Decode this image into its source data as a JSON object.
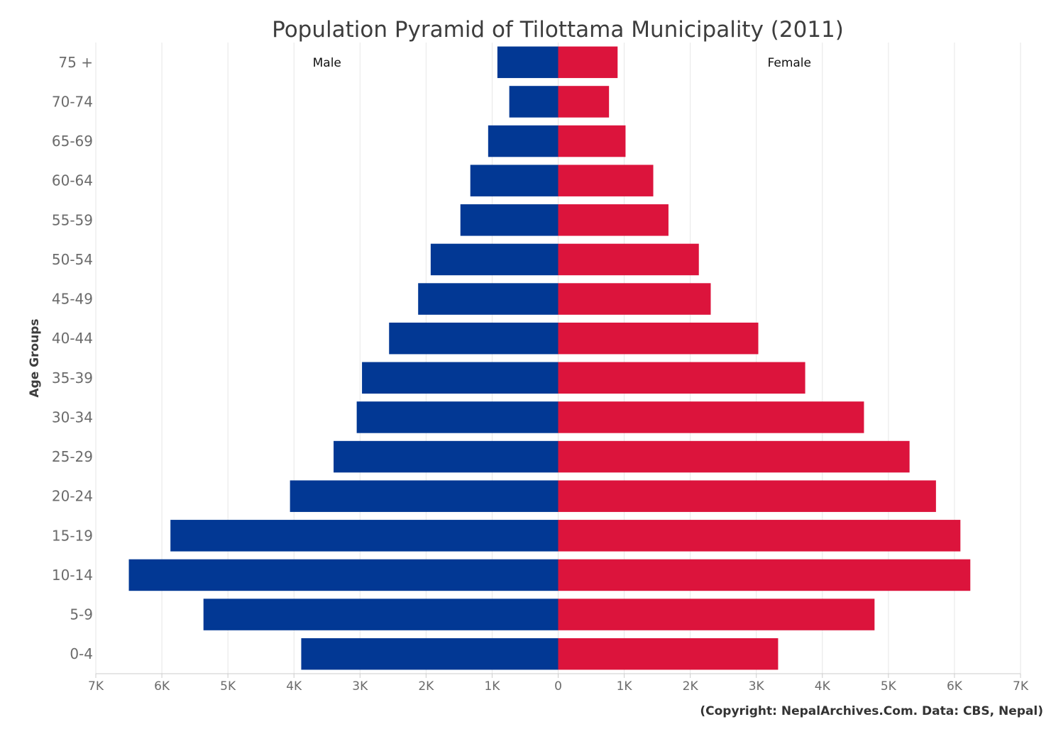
{
  "chart_data": {
    "type": "bar",
    "orientation": "horizontal",
    "layout": "population-pyramid",
    "title": "Population Pyramid of Tilottama Municipality (2011)",
    "ylabel": "Age Groups",
    "xlabel": "",
    "categories": [
      "75 +",
      "70-74",
      "65-69",
      "60-64",
      "55-59",
      "50-54",
      "45-49",
      "40-44",
      "35-39",
      "30-34",
      "25-29",
      "20-24",
      "15-19",
      "10-14",
      "5-9",
      "0-4"
    ],
    "series": [
      {
        "name": "Male",
        "color": "#023894",
        "direction": "left",
        "values": [
          920,
          740,
          1060,
          1330,
          1480,
          1930,
          2120,
          2560,
          2970,
          3050,
          3400,
          4060,
          5870,
          6500,
          5370,
          3890
        ]
      },
      {
        "name": "Female",
        "color": "#dc143c",
        "direction": "right",
        "values": [
          900,
          770,
          1020,
          1440,
          1670,
          2130,
          2310,
          3030,
          3740,
          4630,
          5320,
          5720,
          6090,
          6240,
          4790,
          3330
        ]
      }
    ],
    "xlim": [
      -7000,
      7000
    ],
    "xticks": [
      -7000,
      -6000,
      -5000,
      -4000,
      -3000,
      -2000,
      -1000,
      0,
      1000,
      2000,
      3000,
      4000,
      5000,
      6000,
      7000
    ],
    "xtick_labels": [
      "7K",
      "6K",
      "5K",
      "4K",
      "3K",
      "2K",
      "1K",
      "0",
      "1K",
      "2K",
      "3K",
      "4K",
      "5K",
      "6K",
      "7K"
    ],
    "grid": true,
    "series_label_placement": "top, inside each half",
    "credit": "(Copyright: NepalArchives.Com. Data: CBS, Nepal)"
  }
}
